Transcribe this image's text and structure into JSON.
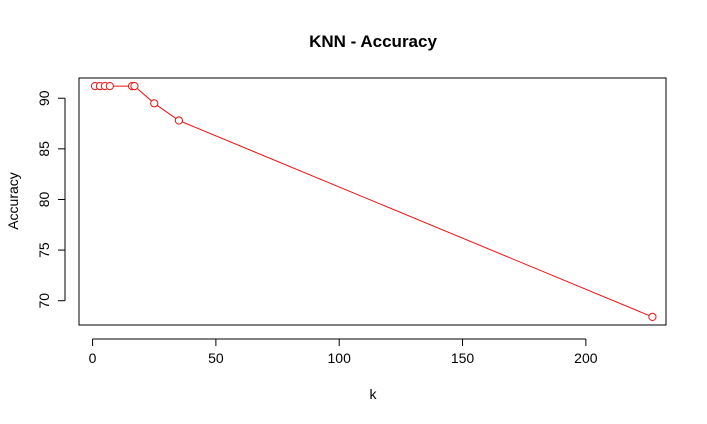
{
  "chart_data": {
    "type": "line",
    "title": "KNN - Accuracy",
    "xlabel": "k",
    "ylabel": "Accuracy",
    "xlim": [
      -5.5,
      232.5
    ],
    "ylim": [
      67.6,
      92.0
    ],
    "xticks": [
      0,
      50,
      100,
      150,
      200
    ],
    "yticks": [
      70,
      75,
      80,
      85,
      90
    ],
    "grid": false,
    "legend": "none",
    "colors": {
      "series": "#ee1111",
      "axis": "#000000"
    },
    "series": [
      {
        "marker": "open-circle",
        "x": [
          1,
          3,
          5,
          7,
          16,
          17,
          25,
          35,
          227
        ],
        "y": [
          91.2,
          91.2,
          91.2,
          91.2,
          91.2,
          91.2,
          89.5,
          87.8,
          68.4
        ]
      }
    ]
  }
}
